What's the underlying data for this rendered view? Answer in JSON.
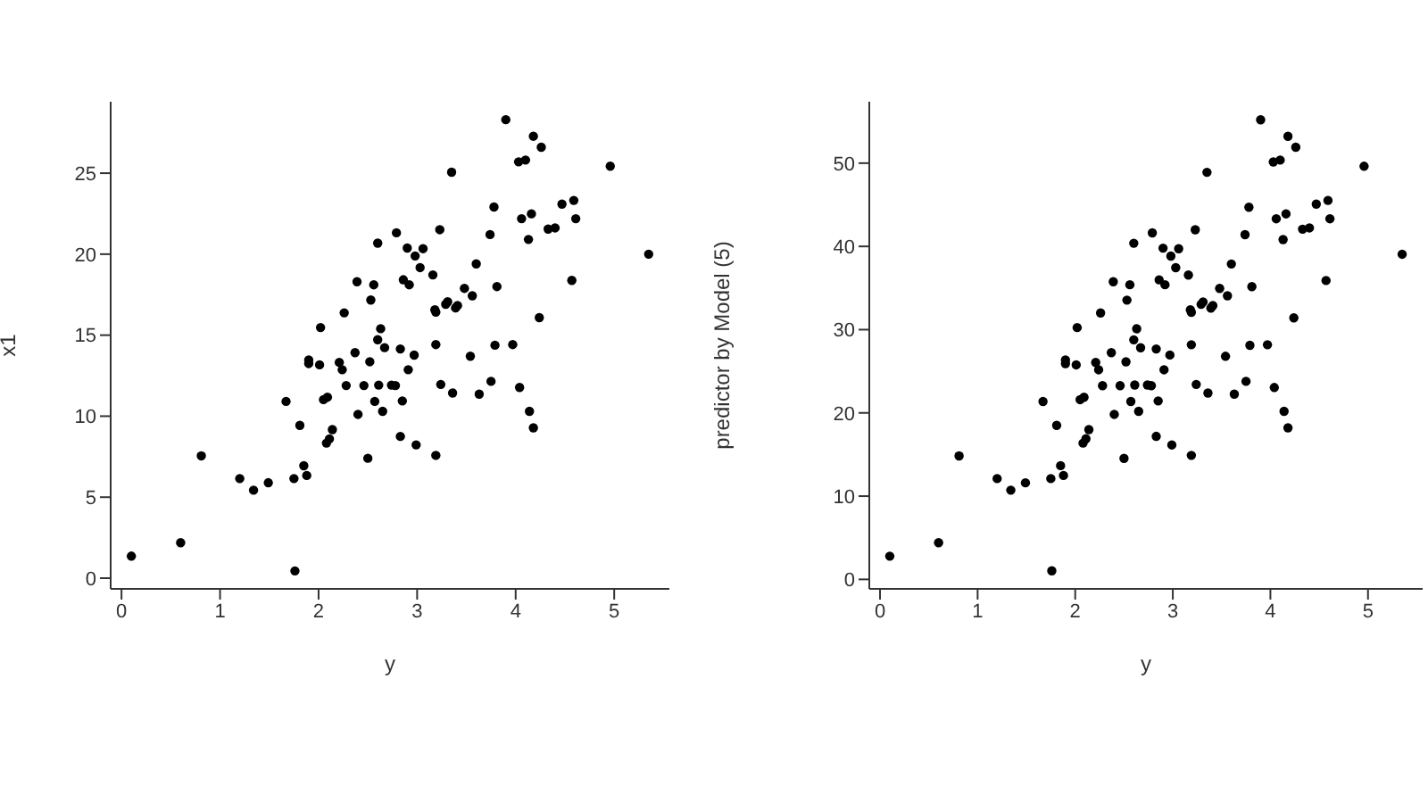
{
  "chart_data": [
    {
      "type": "scatter",
      "xlabel": "y",
      "ylabel": "x1",
      "marker": "circle",
      "grid": false,
      "xlim": [
        -0.11,
        5.56
      ],
      "ylim": [
        -0.66,
        29.41
      ],
      "xticks": [
        0,
        1,
        2,
        3,
        4,
        5
      ],
      "yticks": [
        0,
        5,
        10,
        15,
        20,
        25
      ],
      "series": [
        {
          "color": "#000000",
          "x": [
            0.1,
            0.6,
            0.81,
            1.2,
            1.34,
            1.49,
            1.67,
            1.75,
            1.76,
            1.81,
            1.85,
            1.88,
            1.9,
            1.9,
            2.01,
            2.02,
            2.05,
            2.09,
            2.08,
            2.11,
            2.14,
            2.21,
            2.24,
            2.26,
            2.28,
            2.37,
            2.39,
            2.4,
            2.46,
            2.5,
            2.52,
            2.53,
            2.56,
            2.57,
            2.6,
            2.6,
            2.61,
            2.63,
            2.65,
            2.67,
            2.74,
            2.78,
            2.79,
            2.83,
            2.83,
            2.85,
            2.86,
            2.9,
            2.91,
            2.92,
            2.97,
            2.98,
            2.99,
            3.03,
            3.06,
            3.16,
            3.18,
            3.19,
            3.19,
            3.19,
            3.23,
            3.24,
            3.29,
            3.31,
            3.35,
            3.36,
            3.39,
            3.41,
            3.48,
            3.54,
            3.56,
            3.6,
            3.63,
            3.74,
            3.75,
            3.78,
            3.79,
            3.81,
            3.9,
            3.97,
            4.03,
            4.04,
            4.06,
            4.1,
            4.13,
            4.14,
            4.16,
            4.18,
            4.18,
            4.24,
            4.26,
            4.33,
            4.4,
            4.47,
            4.57,
            4.59,
            4.61,
            4.96,
            5.35
          ],
          "values": [
            1.36,
            2.19,
            7.55,
            6.15,
            5.43,
            5.89,
            10.91,
            6.15,
            0.45,
            9.43,
            6.94,
            6.34,
            13.47,
            13.25,
            13.17,
            15.47,
            11.02,
            11.17,
            8.34,
            8.6,
            9.17,
            13.32,
            12.87,
            16.38,
            11.89,
            13.92,
            18.3,
            10.11,
            11.89,
            7.4,
            13.36,
            17.17,
            18.11,
            10.91,
            20.68,
            14.72,
            11.92,
            15.4,
            10.3,
            14.23,
            11.92,
            11.89,
            21.32,
            14.15,
            8.75,
            10.94,
            18.42,
            20.38,
            12.87,
            18.11,
            13.77,
            19.89,
            8.23,
            19.17,
            20.34,
            18.72,
            16.57,
            16.42,
            14.42,
            7.58,
            21.51,
            11.96,
            16.91,
            17.06,
            25.06,
            11.43,
            16.68,
            16.83,
            17.89,
            13.7,
            17.43,
            19.4,
            11.36,
            21.21,
            12.15,
            22.91,
            14.38,
            18.0,
            28.3,
            14.42,
            25.7,
            11.77,
            22.19,
            25.81,
            20.91,
            10.3,
            22.49,
            27.28,
            9.28,
            16.08,
            26.6,
            21.55,
            21.62,
            23.09,
            18.38,
            23.32,
            22.19,
            25.43,
            20.0
          ]
        }
      ]
    },
    {
      "type": "scatter",
      "xlabel": "y",
      "ylabel": "predictor by Model (5)",
      "marker": "circle",
      "grid": false,
      "xlim": [
        -0.11,
        5.56
      ],
      "ylim": [
        -1.14,
        57.38
      ],
      "xticks": [
        0,
        1,
        2,
        3,
        4,
        5
      ],
      "yticks": [
        0,
        10,
        20,
        30,
        40,
        50
      ],
      "series": [
        {
          "color": "#000000",
          "x": [
            0.1,
            0.6,
            0.81,
            1.2,
            1.34,
            1.49,
            1.67,
            1.75,
            1.76,
            1.81,
            1.85,
            1.88,
            1.9,
            1.9,
            2.01,
            2.02,
            2.05,
            2.09,
            2.08,
            2.11,
            2.14,
            2.21,
            2.24,
            2.26,
            2.28,
            2.37,
            2.39,
            2.4,
            2.46,
            2.5,
            2.52,
            2.53,
            2.56,
            2.57,
            2.6,
            2.6,
            2.61,
            2.63,
            2.65,
            2.67,
            2.74,
            2.78,
            2.79,
            2.83,
            2.83,
            2.85,
            2.86,
            2.9,
            2.91,
            2.92,
            2.97,
            2.98,
            2.99,
            3.03,
            3.06,
            3.16,
            3.18,
            3.19,
            3.19,
            3.19,
            3.23,
            3.24,
            3.29,
            3.31,
            3.35,
            3.36,
            3.39,
            3.41,
            3.48,
            3.54,
            3.56,
            3.6,
            3.63,
            3.74,
            3.75,
            3.78,
            3.79,
            3.81,
            3.9,
            3.97,
            4.03,
            4.04,
            4.06,
            4.1,
            4.13,
            4.14,
            4.16,
            4.18,
            4.18,
            4.24,
            4.26,
            4.33,
            4.4,
            4.47,
            4.57,
            4.59,
            4.61,
            4.96,
            5.35
          ],
          "values": [
            2.79,
            4.41,
            14.83,
            12.11,
            10.72,
            11.6,
            21.37,
            12.11,
            1.03,
            18.5,
            13.66,
            12.48,
            26.36,
            25.92,
            25.77,
            30.25,
            21.59,
            21.88,
            16.37,
            16.89,
            17.99,
            26.06,
            25.18,
            32.01,
            23.27,
            27.24,
            35.76,
            19.82,
            23.27,
            14.54,
            26.14,
            33.55,
            35.39,
            21.37,
            40.38,
            28.78,
            23.35,
            30.1,
            20.19,
            27.83,
            23.35,
            23.27,
            41.63,
            27.68,
            17.18,
            21.44,
            35.98,
            39.79,
            25.18,
            35.39,
            26.95,
            38.84,
            16.15,
            37.44,
            39.72,
            36.56,
            32.38,
            32.09,
            28.19,
            14.9,
            42.0,
            23.42,
            33.04,
            33.33,
            48.9,
            22.39,
            32.6,
            32.89,
            34.95,
            26.8,
            34.07,
            37.89,
            22.25,
            41.41,
            23.79,
            44.71,
            28.12,
            35.17,
            55.21,
            28.19,
            50.15,
            23.05,
            43.32,
            50.37,
            40.82,
            20.19,
            43.91,
            53.23,
            18.21,
            31.42,
            51.91,
            42.07,
            42.22,
            45.08,
            35.9,
            45.52,
            43.32,
            49.63,
            39.06
          ]
        }
      ]
    }
  ]
}
